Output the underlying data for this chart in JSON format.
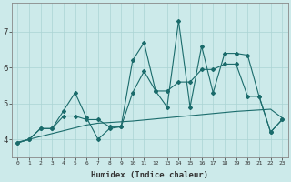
{
  "xlabel": "Humidex (Indice chaleur)",
  "x": [
    0,
    1,
    2,
    3,
    4,
    5,
    6,
    7,
    8,
    9,
    10,
    11,
    12,
    13,
    14,
    15,
    16,
    17,
    18,
    19,
    20,
    21,
    22,
    23
  ],
  "y_main": [
    3.9,
    4.0,
    4.3,
    4.3,
    4.8,
    5.3,
    4.6,
    4.0,
    4.3,
    4.35,
    6.2,
    6.7,
    5.35,
    4.9,
    7.3,
    4.9,
    6.6,
    5.3,
    6.4,
    6.4,
    6.35,
    5.2,
    4.2,
    4.55
  ],
  "y_smooth": [
    3.9,
    4.0,
    4.3,
    4.3,
    4.65,
    4.65,
    4.55,
    4.55,
    4.35,
    4.35,
    5.3,
    5.9,
    5.35,
    5.35,
    5.6,
    5.6,
    5.95,
    5.95,
    6.1,
    6.1,
    5.2,
    5.2,
    4.2,
    4.55
  ],
  "y_trend": [
    3.92,
    4.0,
    4.08,
    4.16,
    4.24,
    4.32,
    4.4,
    4.45,
    4.47,
    4.49,
    4.51,
    4.54,
    4.57,
    4.6,
    4.63,
    4.66,
    4.69,
    4.72,
    4.75,
    4.78,
    4.8,
    4.82,
    4.84,
    4.6
  ],
  "bg_color": "#cceaea",
  "line_color": "#1a6b6b",
  "grid_color": "#aad4d4",
  "ylim": [
    3.5,
    7.8
  ],
  "xlim": [
    -0.5,
    23.5
  ],
  "yticks": [
    4,
    5,
    6,
    7
  ],
  "xticks": [
    0,
    1,
    2,
    3,
    4,
    5,
    6,
    7,
    8,
    9,
    10,
    11,
    12,
    13,
    14,
    15,
    16,
    17,
    18,
    19,
    20,
    21,
    22,
    23
  ]
}
